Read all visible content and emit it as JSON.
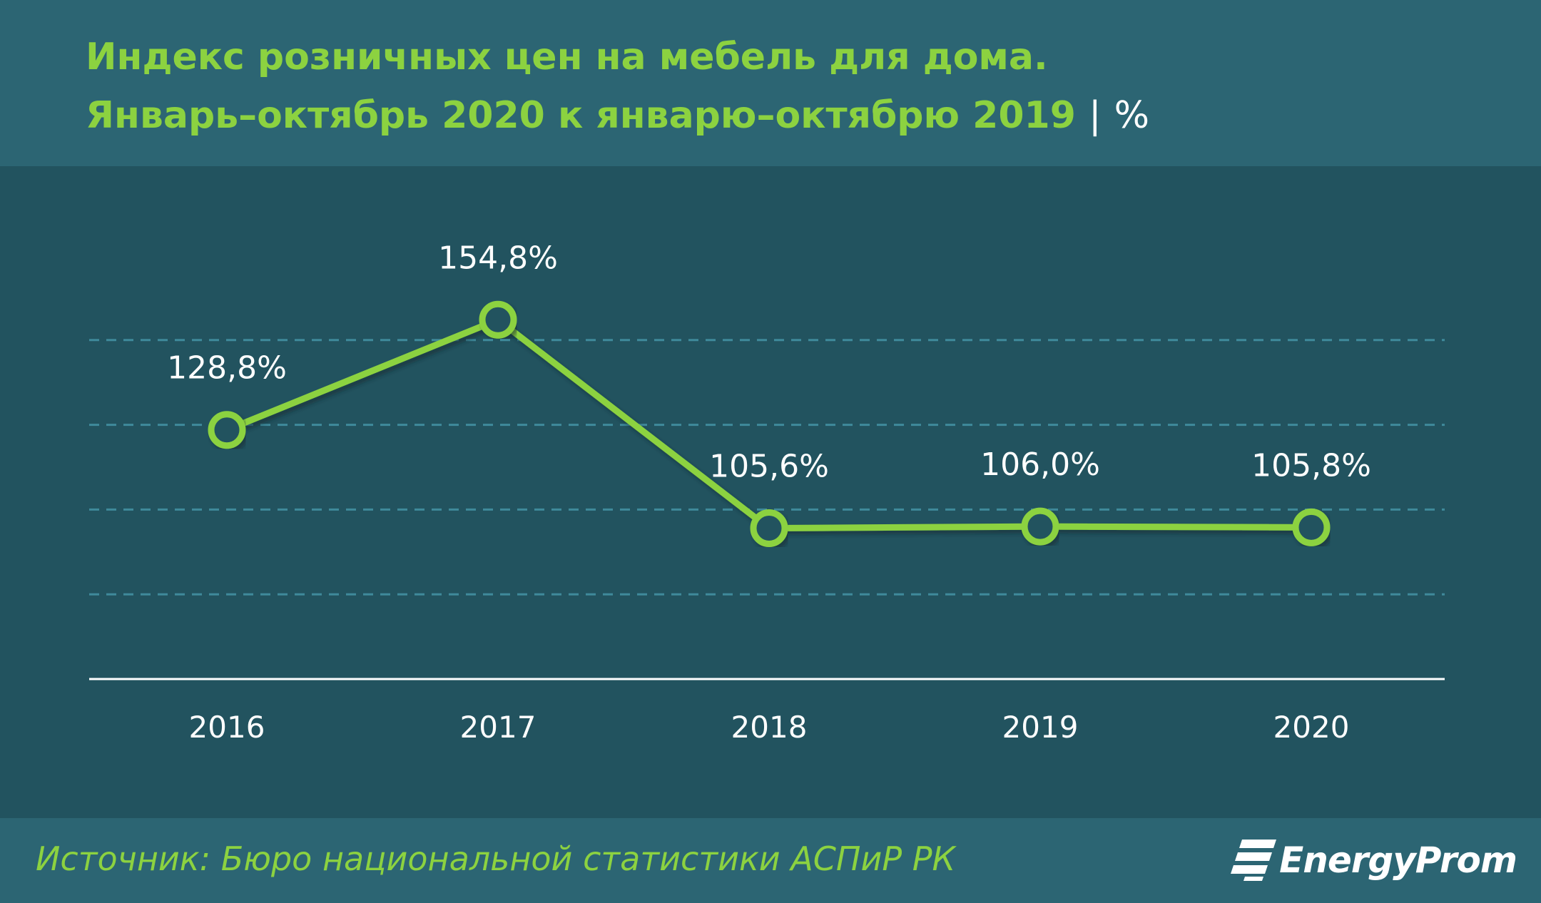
{
  "title": {
    "line1": "Индекс розничных цен на мебель для дома.",
    "line2": "Январь–октябрь 2020 к январю–октябрю 2019",
    "unit_separator": "|",
    "unit": "%"
  },
  "chart_data": {
    "type": "line",
    "categories": [
      "2016",
      "2017",
      "2018",
      "2019",
      "2020"
    ],
    "series": [
      {
        "values": [
          128.8,
          154.8,
          105.6,
          106.0,
          105.8
        ]
      }
    ],
    "data_labels": [
      "128,8%",
      "154,8%",
      "105,6%",
      "106,0%",
      "105,8%"
    ],
    "ylim": [
      70,
      170
    ],
    "grid": true,
    "colors": {
      "line": "#8cd240",
      "grid": "#3f8a9b",
      "axis": "#ffffff",
      "label": "#ffffff"
    }
  },
  "footer": {
    "source": "Источник: Бюро национальной  статистики АСПиР РК",
    "brand": "EnergyProm",
    "brand_icon": "energyprom-logo-icon"
  }
}
